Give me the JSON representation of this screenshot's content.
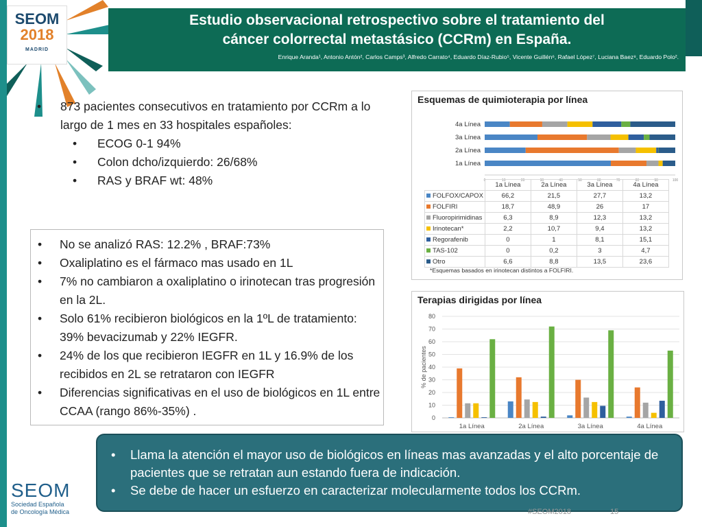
{
  "header": {
    "logo_line1": "SEOM",
    "logo_line2": "2018",
    "logo_city": "MADRID",
    "title_line1": "Estudio observacional retrospectivo sobre el tratamiento del",
    "title_line2": "cáncer colorrectal metastásico (CCRm) en España.",
    "authors": "Enrique Aranda¹, Antonio Antón², Carlos Camps³, Alfredo Carrato⁴, Eduardo Díaz-Rubio⁵, Vicente Guillén⁶, Rafael López⁷, Luciana Baez⁸, Eduardo Polo²."
  },
  "top_bullets": {
    "main": "873 pacientes consecutivos en tratamiento por CCRm a lo largo de 1 mes en 33 hospitales españoles:",
    "sub": [
      "ECOG 0-1 94%",
      "Colon dcho/izquierdo: 26/68%",
      "RAS y BRAF wt: 48%"
    ]
  },
  "box_bullets": [
    "No se analizó RAS: 12.2% ,  BRAF:73%",
    "Oxaliplatino es el fármaco mas usado en 1L",
    "7%  no cambiaron a  oxaliplatino o irinotecan tras progresión en la 2L.",
    "Solo 61% recibieron biológicos en la 1ºL de tratamiento: 39% bevacizumab y 22% IEGFR.",
    "24% de los que recibieron IEGFR en 1L y 16.9% de los recibidos en 2L se retrataron con IEGFR",
    "Diferencias significativas en el uso de biológicos en 1L entre CCAA (rango 86%-35%) ."
  ],
  "callout": [
    "Llama la atención el mayor uso de biológicos en líneas mas avanzadas y el alto porcentaje de pacientes que se retratan  aun estando fuera de indicación.",
    "Se debe de hacer un esfuerzo en caracterizar molecularmente todos los CCRm."
  ],
  "footer": {
    "seom": "SEOM",
    "org_line1": "Sociedad Española",
    "org_line2": "de Oncología Médica",
    "hashtag": "#SEOM2018",
    "page": "15"
  },
  "colors": {
    "FOLFOX/CAPOX": "#4a86c5",
    "FOLFIRI": "#e8792e",
    "Fluoropirimidinas": "#a5a5a5",
    "Irinotecan*": "#f5c000",
    "Regorafenib": "#2f5f9e",
    "TAS-102": "#6ab043",
    "Otro": "#2b5c8a"
  },
  "chart_data": [
    {
      "type": "bar",
      "orientation": "horizontal-stacked",
      "title": "Esquemas de quimioterapia por línea",
      "categories": [
        "1a Línea",
        "2a Línea",
        "3a Línea",
        "4a Línea"
      ],
      "xlim": [
        0,
        100
      ],
      "xticks": [
        "0",
        "10",
        "20",
        "30",
        "40",
        "50",
        "60",
        "70",
        "80",
        "90",
        "100"
      ],
      "legend": "table",
      "series": [
        {
          "name": "FOLFOX/CAPOX",
          "values": [
            66.2,
            21.5,
            27.7,
            13.2
          ],
          "labels": [
            "66,2",
            "21,5",
            "27,7",
            "13,2"
          ]
        },
        {
          "name": "FOLFIRI",
          "values": [
            18.7,
            48.9,
            26,
            17
          ],
          "labels": [
            "18,7",
            "48,9",
            "26",
            "17"
          ]
        },
        {
          "name": "Fluoropirimidinas",
          "values": [
            6.3,
            8.9,
            12.3,
            13.2
          ],
          "labels": [
            "6,3",
            "8,9",
            "12,3",
            "13,2"
          ]
        },
        {
          "name": "Irinotecan*",
          "values": [
            2.2,
            10.7,
            9.4,
            13.2
          ],
          "labels": [
            "2,2",
            "10,7",
            "9,4",
            "13,2"
          ]
        },
        {
          "name": "Regorafenib",
          "values": [
            0,
            1,
            8.1,
            15.1
          ],
          "labels": [
            "0",
            "1",
            "8,1",
            "15,1"
          ]
        },
        {
          "name": "TAS-102",
          "values": [
            0,
            0.2,
            3,
            4.7
          ],
          "labels": [
            "0",
            "0,2",
            "3",
            "4,7"
          ]
        },
        {
          "name": "Otro",
          "values": [
            6.6,
            8.8,
            13.5,
            23.6
          ],
          "labels": [
            "6,6",
            "8,8",
            "13,5",
            "23,6"
          ]
        }
      ],
      "note": "*Esquemas basados en irinotecan distintos a FOLFIRI."
    },
    {
      "type": "bar",
      "title": "Terapias dirigidas por línea",
      "ylabel": "% de pacientes",
      "ylim": [
        0,
        80
      ],
      "yticks": [
        0,
        10,
        20,
        30,
        40,
        50,
        60,
        70,
        80
      ],
      "grid": true,
      "categories": [
        "1a Línea",
        "2a Línea",
        "3a Línea",
        "4a Línea"
      ],
      "series": [
        {
          "values": [
            0.5,
            13,
            2,
            1
          ],
          "color": "#4a86c5"
        },
        {
          "values": [
            39,
            32,
            30,
            24
          ],
          "color": "#e8792e"
        },
        {
          "values": [
            11.5,
            14.5,
            16,
            12
          ],
          "color": "#a5a5a5"
        },
        {
          "values": [
            11.5,
            12.5,
            12.5,
            4
          ],
          "color": "#f5c000"
        },
        {
          "values": [
            0.5,
            1,
            9.5,
            13.5
          ],
          "color": "#2f5f9e"
        },
        {
          "values": [
            62,
            72,
            69,
            53
          ],
          "color": "#6ab043"
        }
      ]
    }
  ]
}
